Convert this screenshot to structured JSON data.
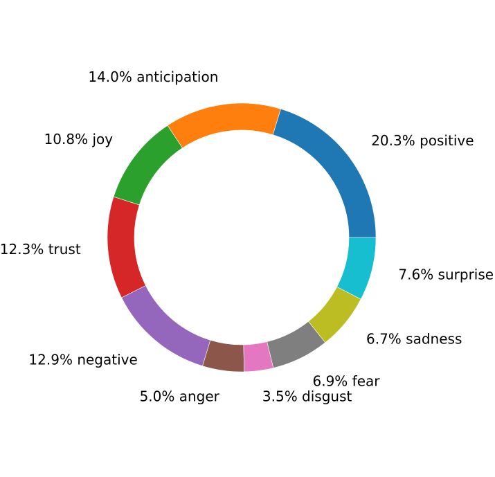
{
  "chart_data": {
    "type": "pie",
    "style": "donut",
    "start_angle_deg": 0,
    "direction": "counterclockwise",
    "label_format": "{pct}% {name}",
    "slices": [
      {
        "name": "positive",
        "value": 20.3,
        "color": "#1f77b4"
      },
      {
        "name": "anticipation",
        "value": 14.0,
        "color": "#ff7f0e"
      },
      {
        "name": "joy",
        "value": 10.8,
        "color": "#2ca02c"
      },
      {
        "name": "trust",
        "value": 12.3,
        "color": "#d62728"
      },
      {
        "name": "negative",
        "value": 12.9,
        "color": "#9467bd"
      },
      {
        "name": "anger",
        "value": 5.0,
        "color": "#8c564b"
      },
      {
        "name": "disgust",
        "value": 3.5,
        "color": "#e377c2"
      },
      {
        "name": "fear",
        "value": 6.9,
        "color": "#7f7f7f"
      },
      {
        "name": "sadness",
        "value": 6.7,
        "color": "#bcbd22"
      },
      {
        "name": "surprise",
        "value": 7.6,
        "color": "#17becf"
      }
    ]
  }
}
